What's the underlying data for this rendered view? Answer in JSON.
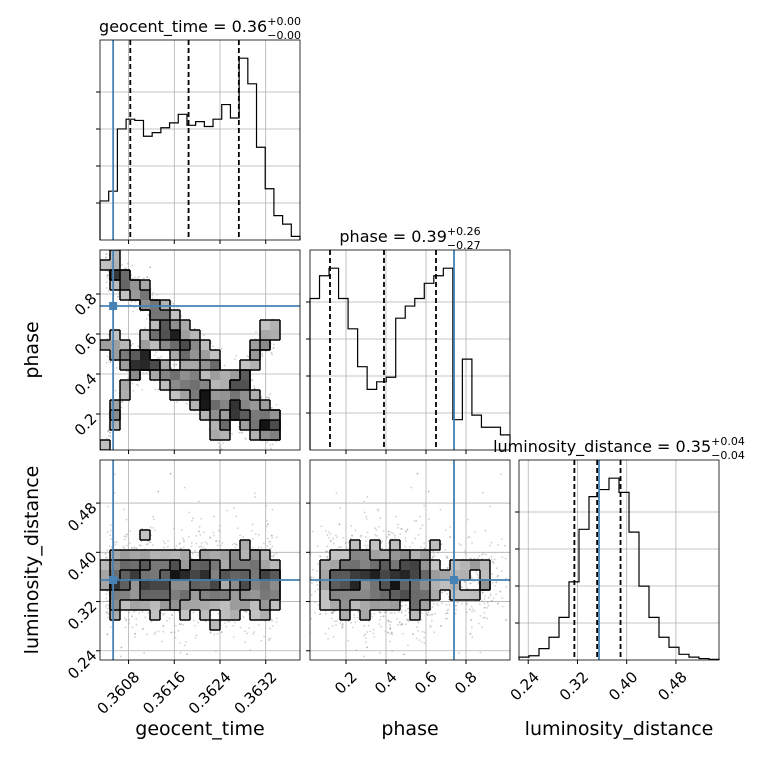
{
  "chart_data": {
    "type": "corner",
    "parameters": [
      "geocent_time",
      "phase",
      "luminosity_distance"
    ],
    "truth_color": "#4682b4",
    "truths": {
      "geocent_time": 0.36053,
      "phase": 0.74,
      "luminosity_distance": 0.355
    },
    "titles": [
      {
        "param": "geocent_time",
        "text": "geocent_time = 0.36",
        "sup": "+0.00",
        "sub": "−0.00"
      },
      {
        "param": "phase",
        "text": "phase = 0.39",
        "sup": "+0.26",
        "sub": "−0.27"
      },
      {
        "param": "luminosity_distance",
        "text": "luminosity_distance = 0.35",
        "sup": "+0.04",
        "sub": "−0.04"
      }
    ],
    "ranges": {
      "geocent_time": [
        0.3603,
        0.3638
      ],
      "phase": [
        0.02,
        1.02
      ],
      "luminosity_distance": [
        0.225,
        0.55
      ]
    },
    "ticks": {
      "geocent_time": [
        "0.3608",
        "0.3616",
        "0.3624",
        "0.3632"
      ],
      "phase": [
        "0.2",
        "0.4",
        "0.6",
        "0.8"
      ],
      "luminosity_distance": [
        "0.24",
        "0.32",
        "0.40",
        "0.48"
      ]
    },
    "axis_labels": {
      "geocent_time": "geocent_time",
      "phase": "phase",
      "luminosity_distance": "luminosity_distance"
    },
    "quantiles": {
      "geocent_time": [
        0.36083,
        0.36185,
        0.36273
      ],
      "phase": [
        0.12,
        0.39,
        0.65
      ],
      "luminosity_distance": [
        0.315,
        0.352,
        0.39
      ]
    },
    "histograms": {
      "geocent_time": [
        3.2,
        4.0,
        9.1,
        9.9,
        9.8,
        8.5,
        8.8,
        9.2,
        9.6,
        10.3,
        9.4,
        9.7,
        9.3,
        9.9,
        11.1,
        10.0,
        14.9,
        12.8,
        7.6,
        4.2,
        2.0,
        1.3,
        0.3
      ],
      "phase": [
        10.0,
        11.5,
        12.0,
        10.0,
        8.0,
        5.5,
        4.0,
        4.5,
        4.8,
        8.7,
        9.5,
        10.0,
        11.0,
        11.5,
        12.0,
        2.0,
        6.0,
        2.3,
        1.5,
        1.5,
        1.0
      ],
      "luminosity_distance": [
        0.2,
        0.3,
        0.8,
        1.6,
        3.0,
        5.5,
        9.2,
        11.5,
        12.0,
        12.8,
        11.8,
        9.0,
        5.2,
        3.0,
        1.6,
        0.9,
        0.4,
        0.2,
        0.1,
        0.05
      ]
    },
    "grid": true
  }
}
